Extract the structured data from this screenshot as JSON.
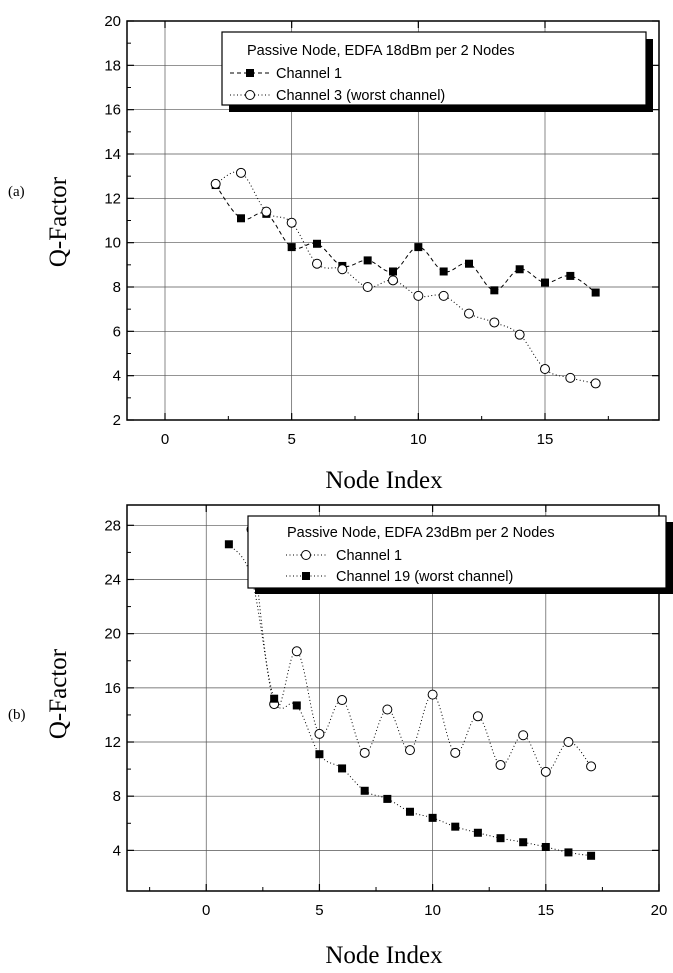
{
  "chart_data": [
    {
      "type": "line",
      "panel_label": "(a)",
      "xlabel": "Node Index",
      "ylabel": "Q-Factor",
      "xlim": [
        -1.5,
        19.5
      ],
      "ylim": [
        2,
        20
      ],
      "x_ticks": [
        0,
        5,
        10,
        15
      ],
      "y_ticks": [
        2,
        4,
        6,
        8,
        10,
        12,
        14,
        16,
        18,
        20
      ],
      "grid": true,
      "legend_title": "Passive Node, EDFA 18dBm per 2 Nodes",
      "legend_position": "top-right",
      "series": [
        {
          "name": "Channel 1",
          "marker": "filled-square",
          "line": "dashed",
          "x": [
            2,
            3,
            4,
            5,
            6,
            7,
            8,
            9,
            10,
            11,
            12,
            13,
            14,
            15,
            16,
            17
          ],
          "values": [
            12.6,
            11.1,
            11.3,
            9.8,
            9.95,
            8.95,
            9.2,
            8.7,
            9.8,
            8.7,
            9.05,
            7.85,
            8.8,
            8.2,
            8.5,
            7.75
          ]
        },
        {
          "name": "Channel 3 (worst channel)",
          "marker": "open-circle",
          "line": "dotted",
          "x": [
            2,
            3,
            4,
            5,
            6,
            7,
            8,
            9,
            10,
            11,
            12,
            13,
            14,
            15,
            16,
            17
          ],
          "values": [
            12.65,
            13.15,
            11.4,
            10.9,
            9.05,
            8.8,
            8.0,
            8.3,
            7.6,
            7.6,
            6.8,
            6.4,
            5.85,
            4.3,
            3.9,
            3.65
          ]
        }
      ]
    },
    {
      "type": "line",
      "panel_label": "(b)",
      "xlabel": "Node Index",
      "ylabel": "Q-Factor",
      "xlim": [
        -3.5,
        20
      ],
      "ylim": [
        1,
        29.5
      ],
      "x_ticks": [
        0,
        5,
        10,
        15,
        20
      ],
      "y_ticks": [
        4,
        8,
        12,
        16,
        20,
        24,
        28
      ],
      "grid": true,
      "legend_title": "Passive Node, EDFA 23dBm per 2 Nodes",
      "legend_position": "top-right",
      "series": [
        {
          "name": "Channel 1",
          "marker": "open-circle",
          "line": "dotted",
          "x": [
            2,
            3,
            4,
            5,
            6,
            7,
            8,
            9,
            10,
            11,
            12,
            13,
            14,
            15,
            16,
            17
          ],
          "values": [
            27.7,
            14.8,
            18.7,
            12.6,
            15.1,
            11.2,
            14.4,
            11.4,
            15.5,
            11.2,
            13.9,
            10.3,
            12.5,
            9.8,
            12.0,
            10.2
          ]
        },
        {
          "name": "Channel 19 (worst channel)",
          "marker": "filled-square",
          "line": "dotted",
          "x": [
            1,
            2,
            3,
            4,
            5,
            6,
            7,
            8,
            9,
            10,
            11,
            12,
            13,
            14,
            15,
            16,
            17
          ],
          "values": [
            26.6,
            24.1,
            15.2,
            14.7,
            11.1,
            10.05,
            8.4,
            7.8,
            6.85,
            6.4,
            5.75,
            5.3,
            4.9,
            4.6,
            4.25,
            3.85,
            3.6
          ]
        }
      ]
    }
  ]
}
